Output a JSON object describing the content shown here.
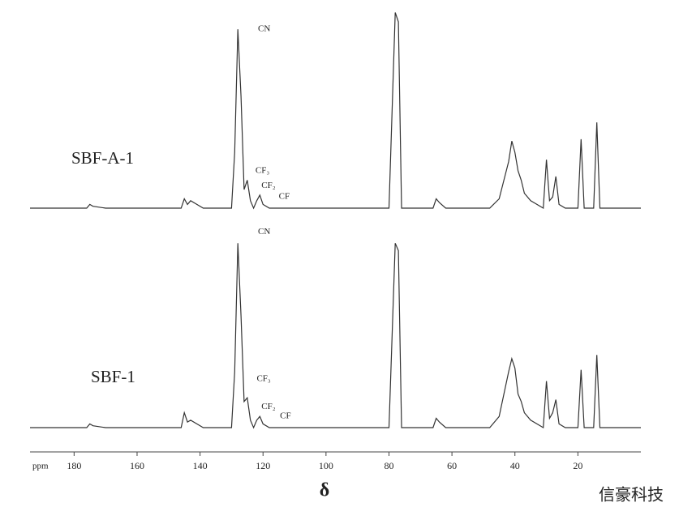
{
  "chart_data": {
    "type": "line",
    "x_label": "δ",
    "x_unit": "ppm",
    "xlim": [
      194,
      0
    ],
    "xticks": [
      180,
      160,
      140,
      120,
      100,
      80,
      60,
      40,
      20
    ],
    "x": [
      194,
      176,
      175,
      174,
      170,
      146,
      145,
      144,
      143,
      141,
      139,
      130,
      129,
      128,
      127,
      126,
      125,
      124,
      123,
      122,
      121,
      120,
      118,
      80,
      78,
      77,
      76,
      66,
      65,
      64,
      62,
      48,
      45,
      42,
      41,
      40,
      39,
      38,
      37,
      35,
      33,
      31,
      30,
      29,
      28,
      27,
      26,
      24,
      20,
      19,
      18,
      15,
      14,
      13,
      0
    ],
    "series": [
      {
        "name": "SBF-A-1",
        "color": "#333333",
        "values": [
          0,
          0,
          2,
          1,
          0,
          0,
          5,
          2,
          4,
          2,
          0,
          0,
          30,
          96,
          60,
          10,
          15,
          4,
          0,
          4,
          7,
          2,
          0,
          0,
          105,
          100,
          0,
          0,
          5,
          3,
          0,
          0,
          5,
          25,
          36,
          30,
          20,
          15,
          8,
          4,
          2,
          0,
          26,
          4,
          6,
          17,
          2,
          0,
          0,
          37,
          0,
          0,
          46,
          0,
          0
        ],
        "annotations": [
          {
            "text": "CN",
            "x": 121.6,
            "y": 96
          },
          {
            "text": "CF₃",
            "x": 122.4,
            "y": 20
          },
          {
            "text": "CF₂",
            "x": 120.5,
            "y": 12
          },
          {
            "text": "CF",
            "x": 115,
            "y": 6
          }
        ]
      },
      {
        "name": "SBF-1",
        "color": "#333333",
        "values": [
          0,
          0,
          2,
          1,
          0,
          0,
          8,
          3,
          4,
          2,
          0,
          0,
          30,
          99,
          60,
          14,
          16,
          4,
          0,
          4,
          6,
          2,
          0,
          0,
          99,
          95,
          0,
          0,
          5,
          3,
          0,
          0,
          6,
          30,
          37,
          32,
          18,
          14,
          8,
          4,
          2,
          0,
          25,
          5,
          8,
          15,
          2,
          0,
          0,
          31,
          0,
          0,
          39,
          0,
          0
        ],
        "annotations": [
          {
            "text": "CN",
            "x": 121.6,
            "y": 105
          },
          {
            "text": "CF₃",
            "x": 122,
            "y": 26
          },
          {
            "text": "CF₂",
            "x": 120.5,
            "y": 11
          },
          {
            "text": "CF",
            "x": 114.6,
            "y": 6
          }
        ]
      }
    ],
    "watermark": "信豪科技"
  }
}
